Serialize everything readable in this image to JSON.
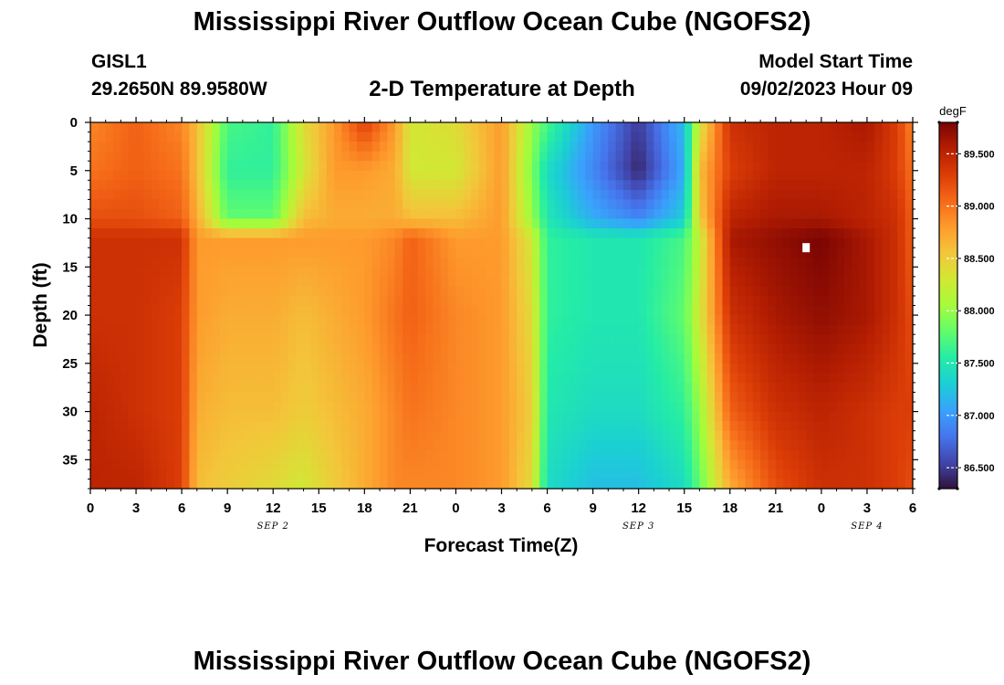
{
  "header": {
    "title": "Mississippi River Outflow Ocean Cube (NGOFS2)",
    "station": "GISL1",
    "coords": "29.2650N  89.9580W",
    "subtitle": "2-D Temperature at Depth",
    "model_start_label": "Model Start Time",
    "model_start_value": "09/02/2023 Hour 09"
  },
  "footer": {
    "title": "Mississippi River Outflow Ocean Cube (NGOFS2)"
  },
  "chart_data": {
    "type": "heatmap",
    "xlabel": "Forecast Time(Z)",
    "ylabel": "Depth (ft)",
    "x_ticks": [
      "0",
      "3",
      "6",
      "9",
      "12",
      "15",
      "18",
      "21",
      "0",
      "3",
      "6",
      "9",
      "12",
      "15",
      "18",
      "21",
      "0",
      "3",
      "6"
    ],
    "x_range_hours": [
      0,
      54
    ],
    "date_labels": [
      {
        "label": "SEP 2",
        "hour": 12
      },
      {
        "label": "SEP 3",
        "hour": 36
      },
      {
        "label": "SEP 4",
        "hour": 51
      }
    ],
    "y_ticks": [
      0,
      5,
      10,
      15,
      20,
      25,
      30,
      35
    ],
    "ylim": [
      0,
      38
    ],
    "y_inverted": true,
    "colorbar": {
      "label": "degF",
      "range": [
        86.3,
        89.8
      ],
      "ticks": [
        "86.500",
        "87.000",
        "87.500",
        "88.000",
        "88.500",
        "89.000",
        "89.500"
      ]
    },
    "colormap": [
      "#30123b",
      "#4145ab",
      "#4675ed",
      "#39a2fc",
      "#1bcfd4",
      "#24eca6",
      "#61fc6c",
      "#a4fc3b",
      "#d1e834",
      "#f3c63a",
      "#fe9b2d",
      "#f56918",
      "#dc3d07",
      "#b41e02",
      "#7a0403"
    ],
    "time_hours": [
      0,
      3,
      6,
      7,
      9,
      12,
      14,
      16,
      18,
      20,
      21,
      24,
      27,
      29,
      30,
      33,
      36,
      39,
      40,
      42,
      45,
      48,
      51,
      53,
      54
    ],
    "depths_ft": [
      0,
      5,
      10,
      12,
      20,
      30,
      38
    ],
    "temperature_degF": [
      [
        88.9,
        89.1,
        88.9,
        88.6,
        87.7,
        87.6,
        88.4,
        88.8,
        89.3,
        88.8,
        88.3,
        88.4,
        88.8,
        88.0,
        87.7,
        87.0,
        86.5,
        87.2,
        88.3,
        89.4,
        89.5,
        89.5,
        89.6,
        89.3,
        88.9
      ],
      [
        89.0,
        89.1,
        89.0,
        88.6,
        87.6,
        87.6,
        88.3,
        88.8,
        88.8,
        88.7,
        88.3,
        88.3,
        88.8,
        87.9,
        87.4,
        86.9,
        86.4,
        87.1,
        88.6,
        89.3,
        89.5,
        89.5,
        89.5,
        89.3,
        89.0
      ],
      [
        89.2,
        89.2,
        89.1,
        88.7,
        87.8,
        87.8,
        88.6,
        88.7,
        88.7,
        88.7,
        88.6,
        88.6,
        88.8,
        88.0,
        87.5,
        87.1,
        86.9,
        87.3,
        88.5,
        89.5,
        89.6,
        89.6,
        89.5,
        89.4,
        89.1
      ],
      [
        89.4,
        89.4,
        89.4,
        88.8,
        88.8,
        88.8,
        88.8,
        88.8,
        88.8,
        88.9,
        89.1,
        88.8,
        88.8,
        88.3,
        87.6,
        87.5,
        87.5,
        87.7,
        88.2,
        89.6,
        89.7,
        89.8,
        89.6,
        89.4,
        89.1
      ],
      [
        89.4,
        89.4,
        89.3,
        88.8,
        88.7,
        88.7,
        88.6,
        88.7,
        88.8,
        89.0,
        89.1,
        88.9,
        88.8,
        88.4,
        87.6,
        87.5,
        87.5,
        87.8,
        88.3,
        89.4,
        89.6,
        89.7,
        89.6,
        89.4,
        89.2
      ],
      [
        89.5,
        89.4,
        89.3,
        88.7,
        88.6,
        88.6,
        88.5,
        88.6,
        88.7,
        88.9,
        89.0,
        88.9,
        88.8,
        88.5,
        87.5,
        87.4,
        87.4,
        87.6,
        88.0,
        89.1,
        89.4,
        89.5,
        89.4,
        89.3,
        89.3
      ],
      [
        89.5,
        89.5,
        89.3,
        88.6,
        88.5,
        88.4,
        88.3,
        88.5,
        88.7,
        88.9,
        88.9,
        88.9,
        88.8,
        88.4,
        87.4,
        87.2,
        87.2,
        87.4,
        87.8,
        88.7,
        89.2,
        89.4,
        89.4,
        89.3,
        89.2
      ]
    ],
    "marker": {
      "hour": 47,
      "depth_ft": 13
    }
  }
}
